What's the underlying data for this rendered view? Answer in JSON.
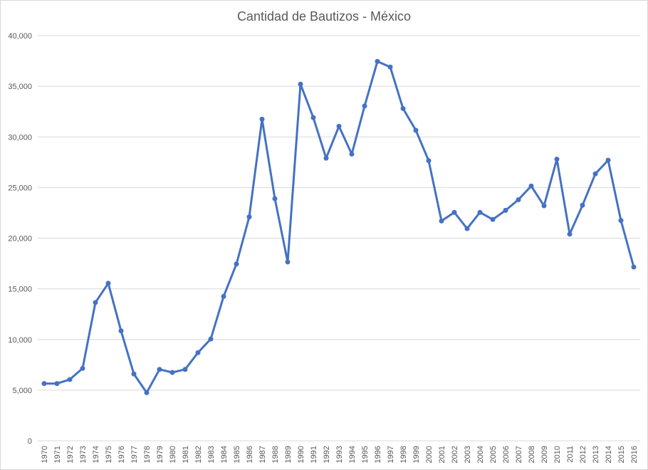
{
  "chart_data": {
    "type": "line",
    "title": "Cantidad de Bautizos - México",
    "xlabel": "",
    "ylabel": "",
    "ylim": [
      0,
      40000
    ],
    "ytick_labels": [
      "0",
      "5,000",
      "10,000",
      "15,000",
      "20,000",
      "25,000",
      "30,000",
      "35,000",
      "40,000"
    ],
    "ytick_values": [
      0,
      5000,
      10000,
      15000,
      20000,
      25000,
      30000,
      35000,
      40000
    ],
    "grid": "horizontal",
    "legend": "none",
    "line_color": "#4472C4",
    "categories": [
      "1970",
      "1971",
      "1972",
      "1973",
      "1974",
      "1975",
      "1976",
      "1977",
      "1978",
      "1979",
      "1980",
      "1981",
      "1982",
      "1983",
      "1984",
      "1985",
      "1986",
      "1987",
      "1988",
      "1989",
      "1990",
      "1991",
      "1992",
      "1993",
      "1994",
      "1995",
      "1996",
      "1997",
      "1998",
      "1999",
      "2000",
      "2001",
      "2002",
      "2003",
      "2004",
      "2005",
      "2006",
      "2007",
      "2008",
      "2009",
      "2010",
      "2011",
      "2012",
      "2013",
      "2014",
      "2015",
      "2016"
    ],
    "series": [
      {
        "values": [
          5650,
          5650,
          6050,
          7150,
          13650,
          15550,
          10850,
          6600,
          4750,
          7050,
          6750,
          7050,
          8700,
          10050,
          14250,
          17450,
          22100,
          31750,
          23900,
          17650,
          35200,
          31900,
          27900,
          31050,
          28300,
          33050,
          37450,
          36900,
          32800,
          30650,
          27650,
          21700,
          22550,
          20950,
          22550,
          21850,
          22750,
          23800,
          25150,
          23200,
          27800,
          20400,
          23250,
          26350,
          27700,
          21750,
          17150
        ]
      }
    ]
  }
}
